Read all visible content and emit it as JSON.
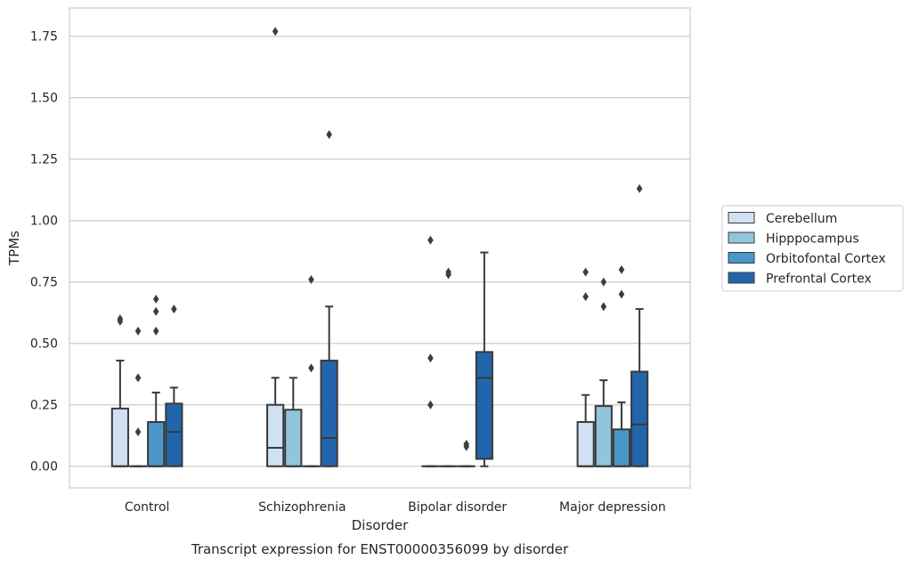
{
  "chart_data": {
    "type": "box",
    "caption": "Transcript expression for ENST00000356099 by disorder",
    "xlabel": "Disorder",
    "ylabel": "TPMs",
    "ylim": [
      -0.088,
      1.865
    ],
    "yticks": [
      "0.00",
      "0.25",
      "0.50",
      "0.75",
      "1.00",
      "1.25",
      "1.50",
      "1.75"
    ],
    "grid": "horizontal",
    "legend_position": "right",
    "categories": [
      "Control",
      "Schizophrenia",
      "Bipolar disorder",
      "Major depression"
    ],
    "series": [
      {
        "name": "Cerebellum",
        "color": "#cfe1f2",
        "boxes": [
          {
            "q1": 0,
            "median": 0,
            "q3": 0.235,
            "whislo": 0,
            "whishi": 0.43,
            "fliers": [
              0.6,
              0.59
            ]
          },
          {
            "q1": 0,
            "median": 0.075,
            "q3": 0.25,
            "whislo": 0,
            "whishi": 0.36,
            "fliers": [
              1.77
            ]
          },
          {
            "q1": 0,
            "median": 0,
            "q3": 0,
            "whislo": 0,
            "whishi": 0,
            "fliers": [
              0.92,
              0.44,
              0.25
            ]
          },
          {
            "q1": 0,
            "median": 0,
            "q3": 0.18,
            "whislo": 0,
            "whishi": 0.29,
            "fliers": [
              0.79,
              0.69
            ]
          }
        ]
      },
      {
        "name": "Hipppocampus",
        "color": "#93c4de",
        "boxes": [
          {
            "q1": 0,
            "median": 0,
            "q3": 0,
            "whislo": 0,
            "whishi": 0,
            "fliers": [
              0.55,
              0.36,
              0.14
            ]
          },
          {
            "q1": 0,
            "median": 0,
            "q3": 0.23,
            "whislo": 0,
            "whishi": 0.36,
            "fliers": []
          },
          {
            "q1": 0,
            "median": 0,
            "q3": 0,
            "whislo": 0,
            "whishi": 0,
            "fliers": [
              0.79,
              0.78
            ]
          },
          {
            "q1": 0,
            "median": 0,
            "q3": 0.245,
            "whislo": 0,
            "whishi": 0.35,
            "fliers": [
              0.75,
              0.65
            ]
          }
        ]
      },
      {
        "name": "Orbitofontal Cortex",
        "color": "#4a98c9",
        "boxes": [
          {
            "q1": 0,
            "median": 0,
            "q3": 0.18,
            "whislo": 0,
            "whishi": 0.3,
            "fliers": [
              0.68,
              0.63,
              0.55
            ]
          },
          {
            "q1": 0,
            "median": 0,
            "q3": 0,
            "whislo": 0,
            "whishi": 0,
            "fliers": [
              0.76,
              0.4
            ]
          },
          {
            "q1": 0,
            "median": 0,
            "q3": 0,
            "whislo": 0,
            "whishi": 0,
            "fliers": [
              0.09,
              0.08
            ]
          },
          {
            "q1": 0,
            "median": 0,
            "q3": 0.15,
            "whislo": 0,
            "whishi": 0.26,
            "fliers": [
              0.8,
              0.7
            ]
          }
        ]
      },
      {
        "name": "Prefrontal Cortex",
        "color": "#2166ac",
        "boxes": [
          {
            "q1": 0,
            "median": 0.14,
            "q3": 0.255,
            "whislo": 0,
            "whishi": 0.32,
            "fliers": [
              0.64
            ]
          },
          {
            "q1": 0,
            "median": 0.115,
            "q3": 0.43,
            "whislo": 0,
            "whishi": 0.65,
            "fliers": [
              1.35
            ]
          },
          {
            "q1": 0.03,
            "median": 0.36,
            "q3": 0.465,
            "whislo": 0,
            "whishi": 0.87,
            "fliers": []
          },
          {
            "q1": 0,
            "median": 0.17,
            "q3": 0.385,
            "whislo": 0,
            "whishi": 0.64,
            "fliers": [
              1.13
            ]
          }
        ]
      }
    ]
  }
}
